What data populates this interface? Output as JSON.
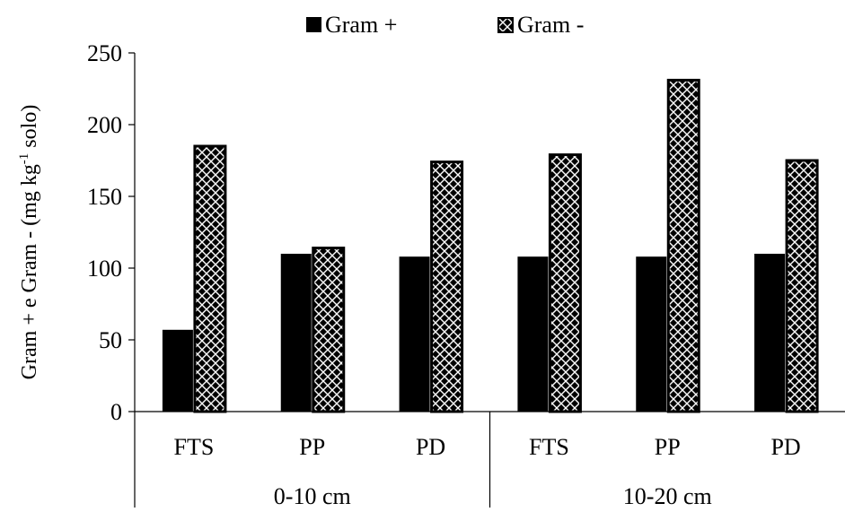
{
  "chart_data": {
    "type": "bar",
    "ylabel": "Gram + e Gram - (mg kg-1 solo)",
    "ylabel_parts": {
      "before": "Gram + e Gram - (mg kg",
      "superscript": "-1",
      "after": " solo)"
    },
    "ylim": [
      0,
      250
    ],
    "yticks": [
      "0",
      "50",
      "100",
      "150",
      "200",
      "250"
    ],
    "ytick_values": [
      0,
      50,
      100,
      150,
      200,
      250
    ],
    "grid": false,
    "legend_position": "top",
    "groups": [
      {
        "label": "0-10 cm",
        "categories": [
          "FTS",
          "PP",
          "PD"
        ]
      },
      {
        "label": "10-20 cm",
        "categories": [
          "FTS",
          "PP",
          "PD"
        ]
      }
    ],
    "series": [
      {
        "name": "Gram +",
        "pattern": "solid",
        "color": "#000000",
        "values": [
          57,
          110,
          108,
          108,
          108,
          110
        ]
      },
      {
        "name": "Gram -",
        "pattern": "checker-diamond",
        "color": "#000000",
        "values": [
          185,
          114,
          174,
          179,
          231,
          175
        ]
      }
    ]
  }
}
